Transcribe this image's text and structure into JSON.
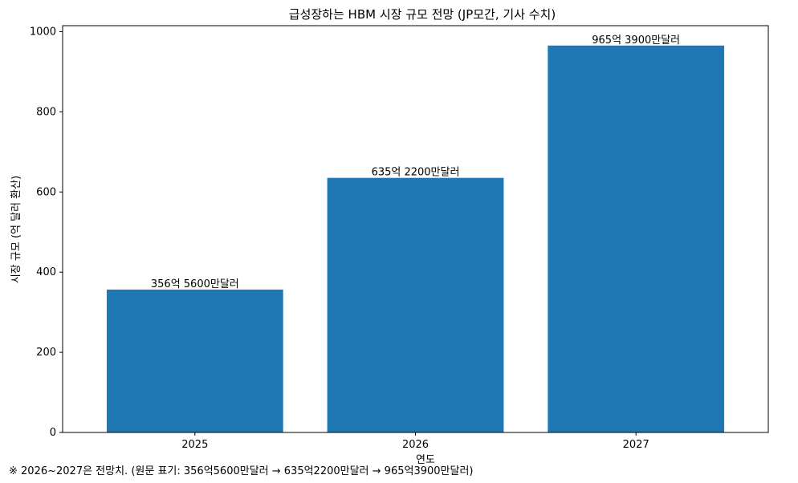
{
  "chart_data": {
    "type": "bar",
    "title": "급성장하는 HBM 시장 규모 전망 (JP모간, 기사 수치)",
    "xlabel": "연도",
    "ylabel": "시장 규모 (억 달러 환산)",
    "categories": [
      "2025",
      "2026",
      "2027"
    ],
    "values": [
      356.56,
      635.22,
      965.39
    ],
    "data_labels": [
      "356억 5600만달러",
      "635억 2200만달러",
      "965억 3900만달러"
    ],
    "ylim": [
      0,
      1015
    ],
    "yticks": [
      0,
      200,
      400,
      600,
      800,
      1000
    ],
    "grid": false,
    "bar_color": "#1f77b4",
    "footnote": "※ 2026~2027은 전망치. (원문 표기: 356억5600만달러 → 635억2200만달러 → 965억3900만달러)"
  }
}
